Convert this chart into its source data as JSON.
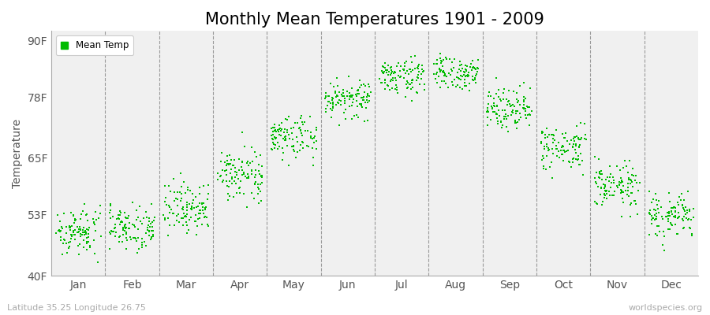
{
  "title": "Monthly Mean Temperatures 1901 - 2009",
  "ylabel": "Temperature",
  "xlabel_bottom_left": "Latitude 35.25 Longitude 26.75",
  "xlabel_bottom_right": "worldspecies.org",
  "legend_label": "Mean Temp",
  "yticks": [
    40,
    53,
    65,
    78,
    90
  ],
  "ytick_labels": [
    "40F",
    "53F",
    "65F",
    "78F",
    "90F"
  ],
  "ylim": [
    40,
    92
  ],
  "months": [
    "Jan",
    "Feb",
    "Mar",
    "Apr",
    "May",
    "Jun",
    "Jul",
    "Aug",
    "Sep",
    "Oct",
    "Nov",
    "Dec"
  ],
  "n_years": 109,
  "monthly_means": [
    49.5,
    50.5,
    54.5,
    61.5,
    69.5,
    77.5,
    82.5,
    83.0,
    76.0,
    67.0,
    59.0,
    52.5
  ],
  "monthly_stds": [
    2.5,
    2.5,
    2.8,
    2.5,
    2.5,
    2.0,
    1.8,
    1.8,
    2.2,
    2.5,
    2.5,
    2.5
  ],
  "dot_color": "#00BB00",
  "dot_size": 3,
  "bg_color": "#F0F0F0",
  "outer_bg": "#FFFFFF",
  "vline_color": "#999999",
  "title_fontsize": 15,
  "axis_label_fontsize": 10,
  "tick_fontsize": 10
}
